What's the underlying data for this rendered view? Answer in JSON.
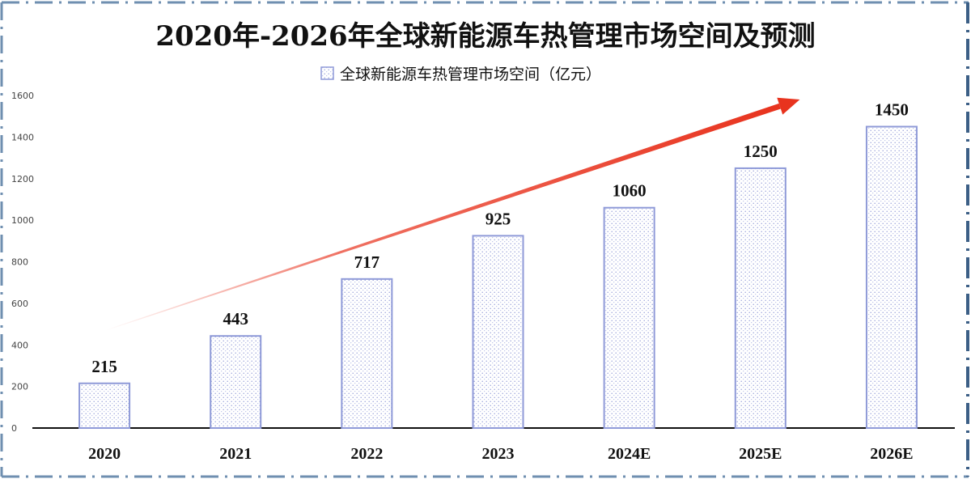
{
  "chart_data": {
    "type": "bar",
    "title": "2020年-2026年全球新能源车热管理市场空间及预测",
    "categories": [
      "2020",
      "2021",
      "2022",
      "2023",
      "2024E",
      "2025E",
      "2026E"
    ],
    "series": [
      {
        "name": "全球新能源车热管理市场空间（亿元）",
        "values": [
          215,
          443,
          717,
          925,
          1060,
          1250,
          1450
        ]
      }
    ],
    "data_labels": [
      "215",
      "443",
      "717",
      "925",
      "1060",
      "1250",
      "1450"
    ],
    "ylim": [
      0,
      1600
    ],
    "yticks": [
      "0",
      "200",
      "400",
      "600",
      "800",
      "1000",
      "1200",
      "1400",
      "1600"
    ],
    "legend_position": "top-center",
    "grid": false,
    "trend_arrow": {
      "color": "#e8331e",
      "direction": "up-right"
    },
    "colors": {
      "bar_stroke": "#8f9ad8",
      "bar_dots": "#9aa3d9",
      "frame": "#6f8fb0"
    }
  }
}
